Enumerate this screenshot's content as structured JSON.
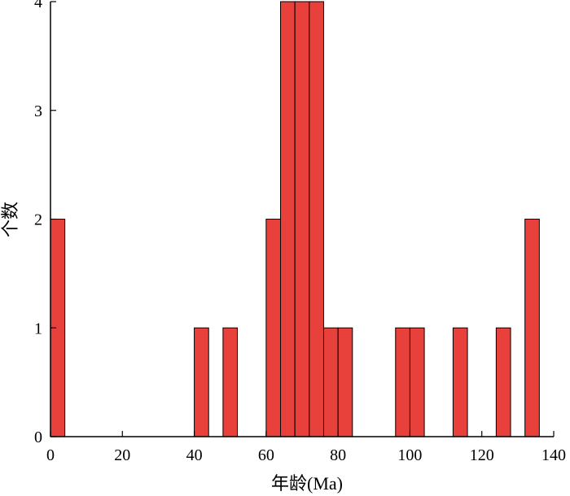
{
  "chart_data": {
    "type": "bar",
    "subtype": "histogram",
    "xlabel": "年龄(Ma)",
    "ylabel": "个数",
    "xlim": [
      0,
      140
    ],
    "ylim": [
      0,
      4
    ],
    "bin_width": 4,
    "x_ticks": [
      0,
      20,
      40,
      60,
      80,
      100,
      120,
      140
    ],
    "y_ticks": [
      0,
      1,
      2,
      3,
      4
    ],
    "bar_color": "#e8403a",
    "edge_color": "#000000",
    "bins": [
      {
        "x0": 0,
        "x1": 4,
        "count": 2
      },
      {
        "x0": 40,
        "x1": 44,
        "count": 1
      },
      {
        "x0": 48,
        "x1": 52,
        "count": 1
      },
      {
        "x0": 60,
        "x1": 64,
        "count": 2
      },
      {
        "x0": 64,
        "x1": 68,
        "count": 4
      },
      {
        "x0": 68,
        "x1": 72,
        "count": 4
      },
      {
        "x0": 72,
        "x1": 76,
        "count": 4
      },
      {
        "x0": 76,
        "x1": 80,
        "count": 1
      },
      {
        "x0": 80,
        "x1": 84,
        "count": 1
      },
      {
        "x0": 96,
        "x1": 100,
        "count": 1
      },
      {
        "x0": 100,
        "x1": 104,
        "count": 1
      },
      {
        "x0": 112,
        "x1": 116,
        "count": 1
      },
      {
        "x0": 124,
        "x1": 128,
        "count": 1
      },
      {
        "x0": 132,
        "x1": 136,
        "count": 2
      }
    ],
    "grid": false,
    "axes_style": "left-and-bottom"
  }
}
